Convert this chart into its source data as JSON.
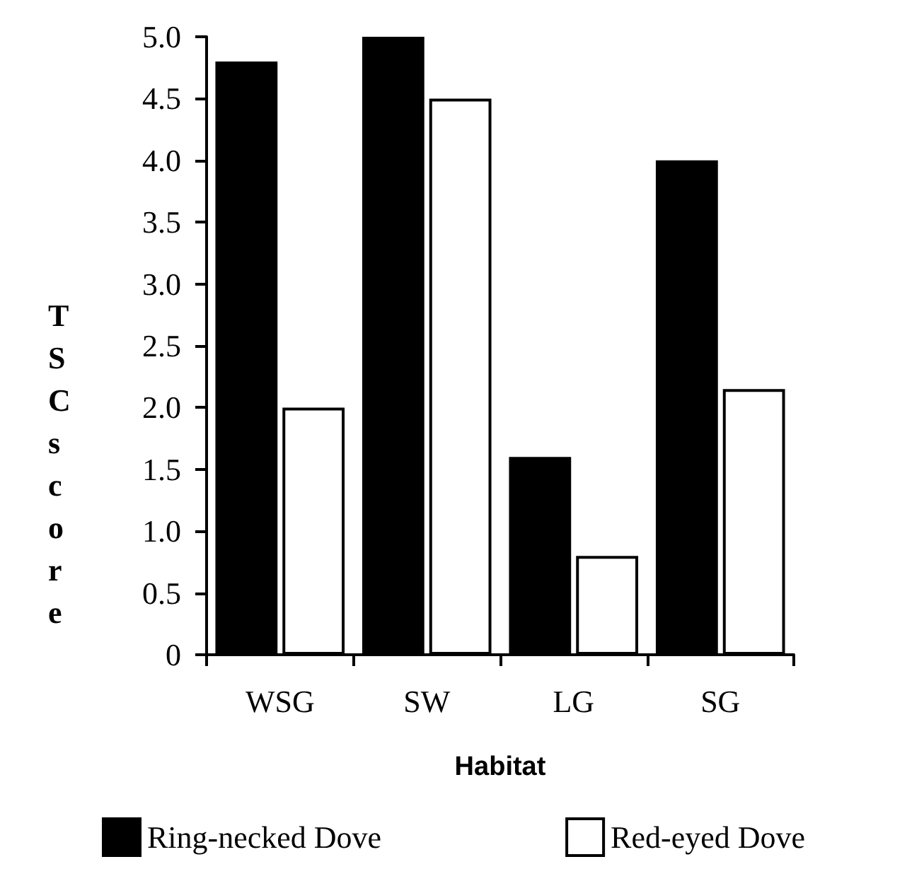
{
  "chart_data": {
    "type": "bar",
    "xlabel": "Habitat",
    "ylabel": "TSCscore",
    "categories": [
      "WSG",
      "SW",
      "LG",
      "SG"
    ],
    "series": [
      {
        "name": "Ring-necked Dove",
        "color": "#000000",
        "values": [
          4.8,
          5.0,
          1.6,
          4.0
        ]
      },
      {
        "name": "Red-eyed Dove",
        "color": "#ffffff",
        "values": [
          2.0,
          4.5,
          0.8,
          2.15
        ]
      }
    ],
    "ylim": [
      0,
      5
    ],
    "yticks": [
      0,
      {
        "value": 0.5,
        "label": "0.5"
      },
      {
        "value": 1,
        "label": "1.0"
      },
      {
        "value": 1.5,
        "label": "1.5"
      },
      {
        "value": 2,
        "label": "2.0"
      },
      {
        "value": 2.5,
        "label": "2.5"
      },
      {
        "value": 3,
        "label": "3.0"
      },
      {
        "value": 3.5,
        "label": "3.5"
      },
      {
        "value": 4,
        "label": "4.0"
      },
      {
        "value": 4.5,
        "label": "4.5"
      },
      {
        "value": 5,
        "label": "5.0"
      }
    ],
    "grid": false,
    "legend": "bottom"
  }
}
